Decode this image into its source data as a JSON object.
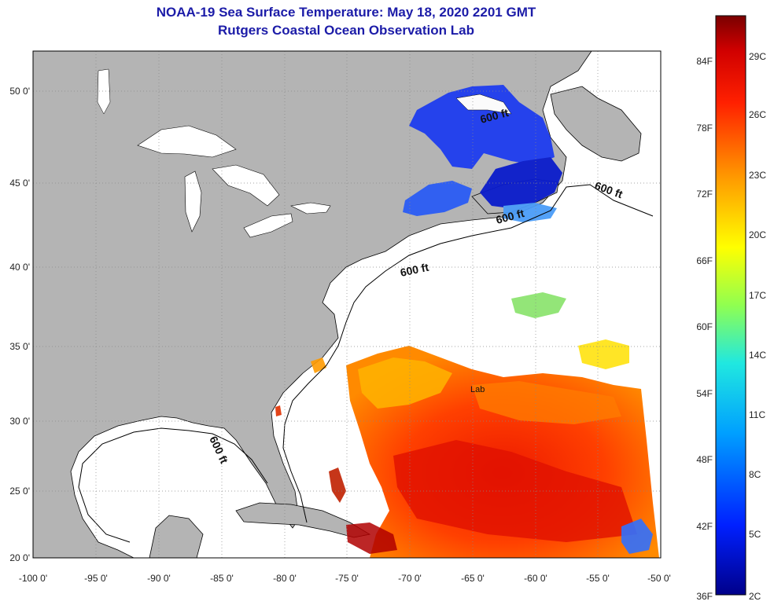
{
  "title_line1": "NOAA-19 Sea Surface Temperature:  May 18, 2020 2201 GMT",
  "title_line2": "Rutgers Coastal Ocean Observation Lab",
  "map": {
    "lon_range": [
      -100,
      -50
    ],
    "lat_range": [
      20,
      52.5
    ],
    "lon_ticks": [
      "-100 0'",
      "-95 0'",
      "-90 0'",
      "-85 0'",
      "-80 0'",
      "-75 0'",
      "-70 0'",
      "-65 0'",
      "-60 0'",
      "-55 0'",
      "-50 0'"
    ],
    "lat_ticks": [
      "50 0'",
      "45 0'",
      "40 0'",
      "35 0'",
      "30 0'",
      "25 0'",
      "20 0'"
    ],
    "contour_labels": [
      "600 ft",
      "600 ft",
      "600 ft",
      "600 ft",
      "600 ft"
    ],
    "extra_label": "Lab",
    "colors": {
      "land": "#b4b4b4",
      "water": "#ffffff",
      "border": "#000000"
    }
  },
  "colorbar": {
    "f_labels": [
      "84F",
      "78F",
      "72F",
      "66F",
      "60F",
      "54F",
      "48F",
      "42F",
      "36F"
    ],
    "c_labels": [
      "29C",
      "26C",
      "23C",
      "20C",
      "17C",
      "14C",
      "11C",
      "8C",
      "5C",
      "2C"
    ],
    "colors": [
      "#7a0000",
      "#cc0000",
      "#ff3000",
      "#ff8c00",
      "#ffe000",
      "#a0ff40",
      "#20e0d0",
      "#00a0ff",
      "#0040ff",
      "#00009a"
    ]
  }
}
